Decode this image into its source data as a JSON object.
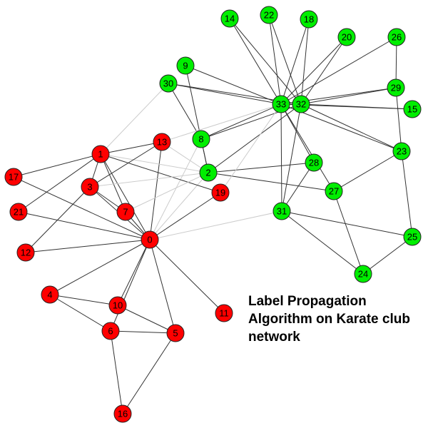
{
  "caption": "Label Propagation Algorithm on Karate club network",
  "colors": {
    "community_red": "#ff0000",
    "community_green": "#00ee00",
    "intra_edge": "#333333",
    "cross_edge": "#cccccc"
  },
  "nodes": [
    {
      "id": 0,
      "label": "0",
      "community": "red"
    },
    {
      "id": 1,
      "label": "1",
      "community": "red"
    },
    {
      "id": 2,
      "label": "2",
      "community": "green"
    },
    {
      "id": 3,
      "label": "3",
      "community": "red"
    },
    {
      "id": 4,
      "label": "4",
      "community": "red"
    },
    {
      "id": 5,
      "label": "5",
      "community": "red"
    },
    {
      "id": 6,
      "label": "6",
      "community": "red"
    },
    {
      "id": 7,
      "label": "7",
      "community": "red"
    },
    {
      "id": 8,
      "label": "8",
      "community": "green"
    },
    {
      "id": 9,
      "label": "9",
      "community": "green"
    },
    {
      "id": 10,
      "label": "10",
      "community": "red"
    },
    {
      "id": 11,
      "label": "11",
      "community": "red"
    },
    {
      "id": 12,
      "label": "12",
      "community": "red"
    },
    {
      "id": 13,
      "label": "13",
      "community": "red"
    },
    {
      "id": 14,
      "label": "14",
      "community": "green"
    },
    {
      "id": 15,
      "label": "15",
      "community": "green"
    },
    {
      "id": 16,
      "label": "16",
      "community": "red"
    },
    {
      "id": 17,
      "label": "17",
      "community": "red"
    },
    {
      "id": 18,
      "label": "18",
      "community": "green"
    },
    {
      "id": 19,
      "label": "19",
      "community": "red"
    },
    {
      "id": 20,
      "label": "20",
      "community": "green"
    },
    {
      "id": 21,
      "label": "21",
      "community": "red"
    },
    {
      "id": 22,
      "label": "22",
      "community": "green"
    },
    {
      "id": 23,
      "label": "23",
      "community": "green"
    },
    {
      "id": 24,
      "label": "24",
      "community": "green"
    },
    {
      "id": 25,
      "label": "25",
      "community": "green"
    },
    {
      "id": 26,
      "label": "26",
      "community": "green"
    },
    {
      "id": 27,
      "label": "27",
      "community": "green"
    },
    {
      "id": 28,
      "label": "28",
      "community": "green"
    },
    {
      "id": 29,
      "label": "29",
      "community": "green"
    },
    {
      "id": 30,
      "label": "30",
      "community": "green"
    },
    {
      "id": 31,
      "label": "31",
      "community": "green"
    },
    {
      "id": 32,
      "label": "32",
      "community": "green"
    },
    {
      "id": 33,
      "label": "33",
      "community": "green"
    }
  ],
  "edges": [
    [
      0,
      1
    ],
    [
      0,
      2
    ],
    [
      0,
      3
    ],
    [
      0,
      4
    ],
    [
      0,
      5
    ],
    [
      0,
      6
    ],
    [
      0,
      7
    ],
    [
      0,
      8
    ],
    [
      0,
      10
    ],
    [
      0,
      11
    ],
    [
      0,
      12
    ],
    [
      0,
      13
    ],
    [
      0,
      17
    ],
    [
      0,
      19
    ],
    [
      0,
      21
    ],
    [
      0,
      31
    ],
    [
      1,
      2
    ],
    [
      1,
      3
    ],
    [
      1,
      7
    ],
    [
      1,
      13
    ],
    [
      1,
      17
    ],
    [
      1,
      19
    ],
    [
      1,
      21
    ],
    [
      1,
      30
    ],
    [
      2,
      3
    ],
    [
      2,
      7
    ],
    [
      2,
      8
    ],
    [
      2,
      9
    ],
    [
      2,
      13
    ],
    [
      2,
      27
    ],
    [
      2,
      28
    ],
    [
      2,
      32
    ],
    [
      3,
      7
    ],
    [
      3,
      12
    ],
    [
      3,
      13
    ],
    [
      4,
      6
    ],
    [
      4,
      10
    ],
    [
      5,
      6
    ],
    [
      5,
      10
    ],
    [
      5,
      16
    ],
    [
      6,
      16
    ],
    [
      8,
      30
    ],
    [
      8,
      32
    ],
    [
      8,
      33
    ],
    [
      9,
      33
    ],
    [
      13,
      33
    ],
    [
      14,
      32
    ],
    [
      14,
      33
    ],
    [
      15,
      32
    ],
    [
      15,
      33
    ],
    [
      18,
      32
    ],
    [
      18,
      33
    ],
    [
      19,
      33
    ],
    [
      20,
      32
    ],
    [
      20,
      33
    ],
    [
      22,
      32
    ],
    [
      22,
      33
    ],
    [
      23,
      25
    ],
    [
      23,
      27
    ],
    [
      23,
      29
    ],
    [
      23,
      32
    ],
    [
      23,
      33
    ],
    [
      24,
      25
    ],
    [
      24,
      27
    ],
    [
      24,
      31
    ],
    [
      25,
      31
    ],
    [
      26,
      29
    ],
    [
      26,
      33
    ],
    [
      27,
      33
    ],
    [
      28,
      31
    ],
    [
      28,
      33
    ],
    [
      29,
      32
    ],
    [
      29,
      33
    ],
    [
      30,
      32
    ],
    [
      30,
      33
    ],
    [
      31,
      32
    ],
    [
      31,
      33
    ],
    [
      32,
      33
    ]
  ]
}
